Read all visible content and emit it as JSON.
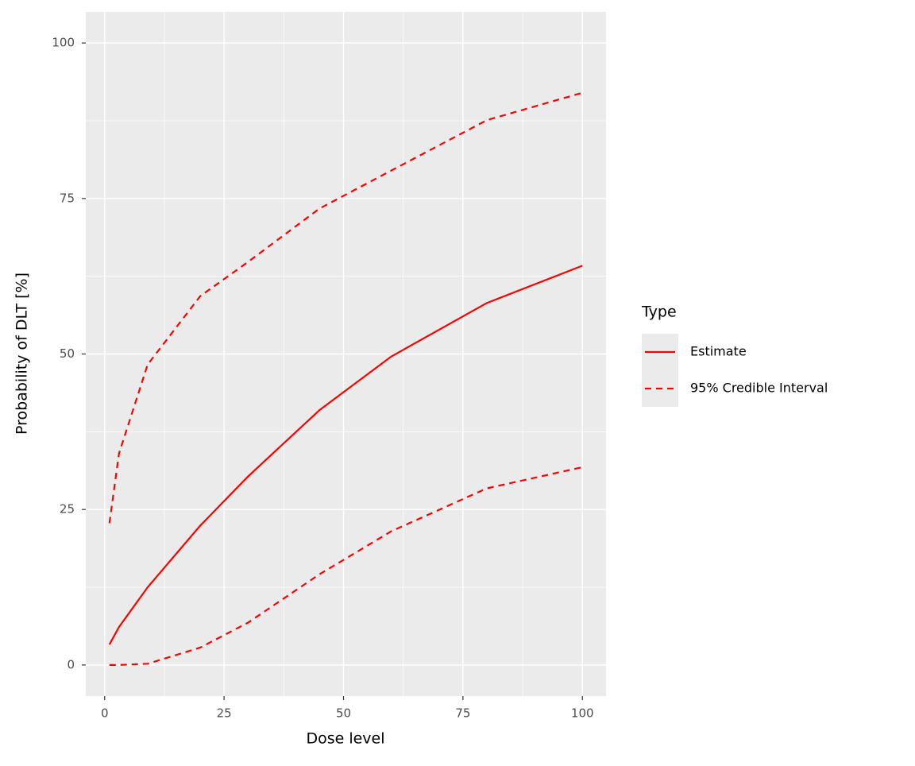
{
  "chart_data": {
    "type": "line",
    "x_label": "Dose level",
    "y_label": "Probability of DLT [%]",
    "x": [
      1,
      3,
      9,
      20,
      30,
      45,
      60,
      80,
      100
    ],
    "series": [
      {
        "name": "Estimate",
        "color": "#ff0000",
        "linetype": "solid",
        "values": [
          3.3,
          6.1,
          12.5,
          22.4,
          30.3,
          41,
          49.6,
          58.2,
          64.2
        ]
      },
      {
        "name": "95% Credible Interval",
        "color": "#ff0000",
        "linetype": "dashed",
        "upper": [
          22.8,
          34,
          48.3,
          59.3,
          64.8,
          73.4,
          79.5,
          87.6,
          92
        ],
        "lower": [
          0,
          0,
          0.2,
          2.8,
          6.8,
          14.6,
          21.5,
          28.4,
          31.8
        ]
      }
    ],
    "xlim": [
      -3.95,
      104.95
    ],
    "ylim": [
      -5,
      105
    ],
    "xticks": [
      0,
      25,
      50,
      75,
      100
    ],
    "yticks": [
      0,
      25,
      50,
      75,
      100
    ],
    "grid": true,
    "legend_title": "Type",
    "legend_position": "right"
  }
}
